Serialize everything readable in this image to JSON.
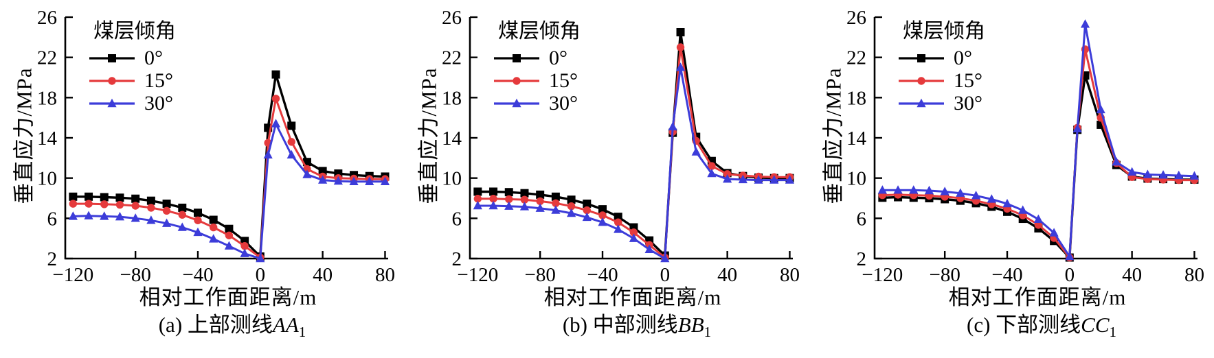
{
  "figure": {
    "background": "#ffffff",
    "axis_color": "#000000",
    "accent_red": "#e53a3c",
    "accent_blue": "#3c3cd9"
  },
  "chart_data": [
    {
      "type": "line",
      "caption": {
        "prefix": "(a) 上部测线",
        "math": "AA",
        "sub": "1"
      },
      "xlabel": "相对工作面距离/m",
      "ylabel": "垂直应力/MPa",
      "legend_title": "煤层倾角",
      "legend_position": "upper-left",
      "grid": false,
      "xlim": [
        -125,
        82
      ],
      "ylim": [
        2,
        26
      ],
      "xticks": [
        -120,
        -80,
        -40,
        0,
        40,
        80
      ],
      "yticks": [
        2,
        6,
        10,
        14,
        18,
        22,
        26
      ],
      "x": [
        -120,
        -110,
        -100,
        -90,
        -80,
        -70,
        -60,
        -50,
        -40,
        -30,
        -20,
        -10,
        0,
        5,
        10,
        20,
        30,
        40,
        50,
        60,
        70,
        80
      ],
      "series": [
        {
          "name": "0°",
          "color": "#000000",
          "marker": "square",
          "values": [
            8.15,
            8.15,
            8.1,
            8.05,
            7.95,
            7.75,
            7.45,
            7.05,
            6.55,
            5.85,
            4.95,
            3.75,
            2.2,
            15.0,
            20.3,
            15.2,
            11.6,
            10.7,
            10.45,
            10.3,
            10.2,
            10.15
          ]
        },
        {
          "name": "15°",
          "color": "#e53a3c",
          "marker": "circle",
          "values": [
            7.45,
            7.45,
            7.4,
            7.35,
            7.25,
            7.05,
            6.75,
            6.35,
            5.8,
            5.1,
            4.3,
            3.25,
            2.1,
            13.5,
            17.9,
            13.6,
            10.9,
            10.15,
            10.0,
            9.95,
            9.9,
            9.9
          ]
        },
        {
          "name": "30°",
          "color": "#3c3cd9",
          "marker": "triangle",
          "values": [
            6.2,
            6.25,
            6.2,
            6.15,
            6.0,
            5.8,
            5.5,
            5.1,
            4.6,
            3.95,
            3.25,
            2.5,
            2.0,
            12.3,
            15.4,
            12.3,
            10.35,
            9.8,
            9.7,
            9.65,
            9.65,
            9.65
          ]
        }
      ]
    },
    {
      "type": "line",
      "caption": {
        "prefix": "(b) 中部测线",
        "math": "BB",
        "sub": "1"
      },
      "xlabel": "相对工作面距离/m",
      "ylabel": "垂直应力/MPa",
      "legend_title": "煤层倾角",
      "legend_position": "upper-left",
      "grid": false,
      "xlim": [
        -125,
        82
      ],
      "ylim": [
        2,
        26
      ],
      "xticks": [
        -120,
        -80,
        -40,
        0,
        40,
        80
      ],
      "yticks": [
        2,
        6,
        10,
        14,
        18,
        22,
        26
      ],
      "x": [
        -120,
        -110,
        -100,
        -90,
        -80,
        -70,
        -60,
        -50,
        -40,
        -30,
        -20,
        -10,
        0,
        5,
        10,
        20,
        30,
        40,
        50,
        60,
        70,
        80
      ],
      "series": [
        {
          "name": "0°",
          "color": "#000000",
          "marker": "square",
          "values": [
            8.65,
            8.65,
            8.6,
            8.5,
            8.35,
            8.15,
            7.85,
            7.45,
            6.9,
            6.15,
            5.1,
            3.8,
            2.3,
            14.5,
            24.5,
            14.1,
            11.7,
            10.5,
            10.2,
            10.05,
            10.0,
            10.0
          ]
        },
        {
          "name": "15°",
          "color": "#e53a3c",
          "marker": "circle",
          "values": [
            7.95,
            7.95,
            7.9,
            7.85,
            7.7,
            7.5,
            7.2,
            6.8,
            6.3,
            5.6,
            4.6,
            3.35,
            2.1,
            14.6,
            23.0,
            13.7,
            11.2,
            10.4,
            10.25,
            10.15,
            10.1,
            10.1
          ]
        },
        {
          "name": "30°",
          "color": "#3c3cd9",
          "marker": "triangle",
          "values": [
            7.25,
            7.25,
            7.2,
            7.15,
            7.0,
            6.8,
            6.5,
            6.1,
            5.6,
            4.9,
            4.0,
            2.9,
            2.0,
            15.1,
            21.0,
            12.6,
            10.45,
            9.9,
            9.85,
            9.8,
            9.8,
            9.8
          ]
        }
      ]
    },
    {
      "type": "line",
      "caption": {
        "prefix": "(c) 下部测线",
        "math": "CC",
        "sub": "1"
      },
      "xlabel": "相对工作面距离/m",
      "ylabel": "垂直应力/MPa",
      "legend_title": "煤层倾角",
      "legend_position": "upper-left",
      "grid": false,
      "xlim": [
        -125,
        82
      ],
      "ylim": [
        2,
        26
      ],
      "xticks": [
        -120,
        -80,
        -40,
        0,
        40,
        80
      ],
      "yticks": [
        2,
        6,
        10,
        14,
        18,
        22,
        26
      ],
      "x": [
        -120,
        -110,
        -100,
        -90,
        -80,
        -70,
        -60,
        -50,
        -40,
        -30,
        -20,
        -10,
        0,
        5,
        10,
        20,
        30,
        40,
        50,
        60,
        70,
        80
      ],
      "series": [
        {
          "name": "0°",
          "color": "#000000",
          "marker": "square",
          "values": [
            8.05,
            8.1,
            8.05,
            8.0,
            7.9,
            7.75,
            7.5,
            7.15,
            6.65,
            5.95,
            5.0,
            3.75,
            2.1,
            14.8,
            20.2,
            15.3,
            11.3,
            10.15,
            9.95,
            9.9,
            9.85,
            9.85
          ]
        },
        {
          "name": "15°",
          "color": "#e53a3c",
          "marker": "circle",
          "values": [
            8.3,
            8.35,
            8.3,
            8.25,
            8.15,
            8.0,
            7.75,
            7.4,
            6.95,
            6.3,
            5.35,
            4.05,
            2.1,
            15.0,
            22.8,
            16.0,
            11.5,
            10.1,
            9.9,
            9.85,
            9.8,
            9.8
          ]
        },
        {
          "name": "30°",
          "color": "#3c3cd9",
          "marker": "triangle",
          "values": [
            8.8,
            8.8,
            8.8,
            8.75,
            8.65,
            8.5,
            8.25,
            7.9,
            7.45,
            6.8,
            5.9,
            4.55,
            2.2,
            14.9,
            25.3,
            16.8,
            11.6,
            10.6,
            10.35,
            10.3,
            10.25,
            10.2
          ]
        }
      ]
    }
  ]
}
